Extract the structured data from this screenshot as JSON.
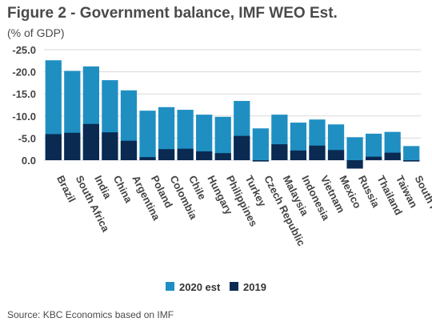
{
  "header": {
    "title": "Figure 2 - Government balance, IMF WEO Est.",
    "subtitle": "(% of GDP)"
  },
  "footer": {
    "source": "Source: KBC Economics based on IMF"
  },
  "chart_data": {
    "type": "bar",
    "title": "Figure 2 - Government balance, IMF WEO Est.",
    "ylabel": "(% of GDP)",
    "ylim": [
      -25,
      2.5
    ],
    "y_axis_reversed": true,
    "yticks": [
      "-25.0",
      "-20.0",
      "-15.0",
      "-10.0",
      "-5.0",
      "0.0"
    ],
    "grid": true,
    "legend_position": "bottom-center",
    "categories": [
      "Brazil",
      "South Africa",
      "India",
      "China",
      "Argentina",
      "Poland",
      "Colombia",
      "Chile",
      "Hungary",
      "Philippines",
      "Turkey",
      "Czech Republic",
      "Malaysia",
      "Indonesia",
      "Vietnam",
      "Mexico",
      "Russia",
      "Thailand",
      "Taiwan",
      "South Korea"
    ],
    "series": [
      {
        "name": "2020 est",
        "color": "#1f8fc2",
        "values": [
          -22.6,
          -20.2,
          -21.2,
          -18.1,
          -15.8,
          -11.2,
          -12.0,
          -11.4,
          -10.3,
          -9.8,
          -13.4,
          -7.2,
          -10.3,
          -8.5,
          -9.2,
          -8.1,
          -5.2,
          -6.0,
          -6.4,
          -3.2
        ]
      },
      {
        "name": "2019",
        "color": "#0a2a52",
        "values": [
          -5.9,
          -6.2,
          -8.2,
          -6.3,
          -4.4,
          -0.7,
          -2.5,
          -2.6,
          -2.0,
          -1.6,
          -5.5,
          0.3,
          -3.6,
          -2.2,
          -3.3,
          -2.3,
          1.9,
          -0.8,
          -1.7,
          0.3
        ]
      }
    ]
  }
}
